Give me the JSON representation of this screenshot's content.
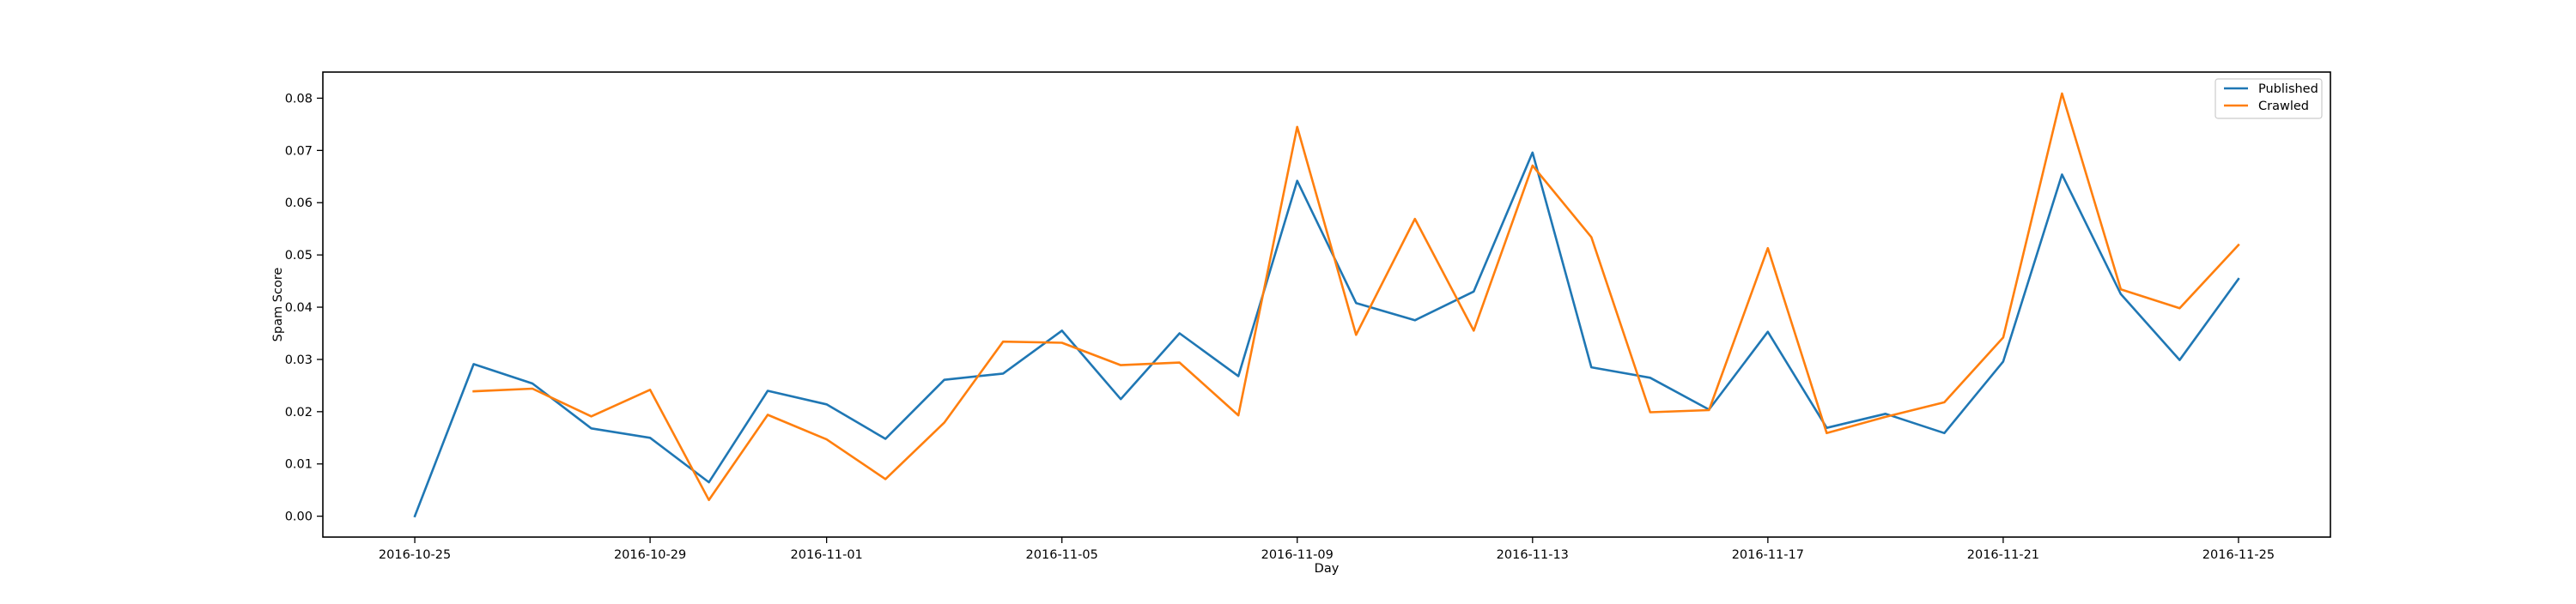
{
  "chart_data": {
    "type": "line",
    "title": "",
    "xlabel": "Day",
    "ylabel": "Spam Score",
    "grid": false,
    "legend_position": "top-right",
    "x": [
      "2016-10-25",
      "2016-10-26",
      "2016-10-27",
      "2016-10-28",
      "2016-10-29",
      "2016-10-30",
      "2016-10-31",
      "2016-11-01",
      "2016-11-02",
      "2016-11-03",
      "2016-11-04",
      "2016-11-05",
      "2016-11-06",
      "2016-11-07",
      "2016-11-08",
      "2016-11-09",
      "2016-11-10",
      "2016-11-11",
      "2016-11-12",
      "2016-11-13",
      "2016-11-14",
      "2016-11-15",
      "2016-11-16",
      "2016-11-17",
      "2016-11-18",
      "2016-11-19",
      "2016-11-20",
      "2016-11-21",
      "2016-11-22",
      "2016-11-23",
      "2016-11-24",
      "2016-11-25"
    ],
    "xlim": [
      "2016-10-23T10:30",
      "2016-11-26T13:30"
    ],
    "x_tick_labels": [
      "2016-10-25",
      "2016-10-29",
      "2016-11-01",
      "2016-11-05",
      "2016-11-09",
      "2016-11-13",
      "2016-11-17",
      "2016-11-21",
      "2016-11-25"
    ],
    "ylim": [
      -0.004,
      0.085
    ],
    "y_ticks": [
      0.0,
      0.01,
      0.02,
      0.03,
      0.04,
      0.05,
      0.06,
      0.07,
      0.08
    ],
    "y_tick_labels": [
      "0.00",
      "0.01",
      "0.02",
      "0.03",
      "0.04",
      "0.05",
      "0.06",
      "0.07",
      "0.08"
    ],
    "series": [
      {
        "name": "Published",
        "color": "#1f77b4",
        "values": [
          0.0,
          0.0291,
          0.0254,
          0.0168,
          0.015,
          0.0065,
          0.024,
          0.0214,
          0.0148,
          0.0261,
          0.0273,
          0.0355,
          0.0224,
          0.035,
          0.0268,
          0.0642,
          0.0408,
          0.0375,
          0.043,
          0.0696,
          0.0285,
          0.0265,
          0.0204,
          0.0353,
          0.0169,
          0.0196,
          0.0159,
          0.0296,
          0.0654,
          0.0425,
          0.0299,
          0.0454
        ]
      },
      {
        "name": "Crawled",
        "color": "#ff7f0e",
        "values": [
          null,
          0.0239,
          0.0244,
          0.0191,
          0.0242,
          0.0031,
          0.0194,
          0.0147,
          0.0071,
          0.0179,
          0.0334,
          0.0332,
          0.0289,
          0.0294,
          0.0193,
          0.0745,
          0.0347,
          0.0569,
          0.0355,
          0.0671,
          0.0534,
          0.0199,
          0.0203,
          0.0513,
          0.0159,
          0.019,
          0.0218,
          0.0342,
          0.0809,
          0.0434,
          0.0398,
          0.0519
        ]
      }
    ]
  }
}
